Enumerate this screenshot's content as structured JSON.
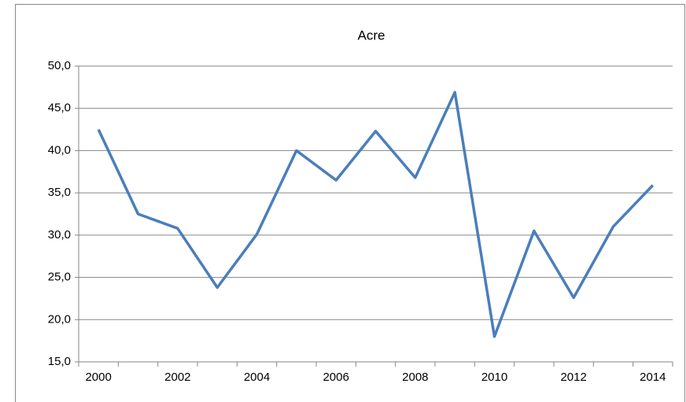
{
  "chart_data": {
    "type": "line",
    "title": "Acre",
    "categories": [
      2000,
      null,
      2002,
      null,
      2004,
      null,
      2006,
      null,
      2008,
      null,
      2010,
      null,
      2012,
      null,
      2014
    ],
    "series": [
      {
        "name": "Acre",
        "color": "#4a7ebb",
        "values": [
          42.5,
          32.5,
          30.8,
          23.8,
          30.1,
          40.0,
          36.5,
          42.3,
          36.8,
          46.9,
          18.0,
          30.5,
          22.6,
          31.0,
          35.9
        ]
      }
    ],
    "ylim": [
      15,
      50
    ],
    "yticks": [
      {
        "value": 15,
        "label": "15,0"
      },
      {
        "value": 20,
        "label": "20,0"
      },
      {
        "value": 25,
        "label": "25,0"
      },
      {
        "value": 30,
        "label": "30,0"
      },
      {
        "value": 35,
        "label": "35,0"
      },
      {
        "value": 40,
        "label": "40,0"
      },
      {
        "value": 45,
        "label": "45,0"
      },
      {
        "value": 50,
        "label": "50,0"
      }
    ],
    "grid": true,
    "legend": false
  }
}
